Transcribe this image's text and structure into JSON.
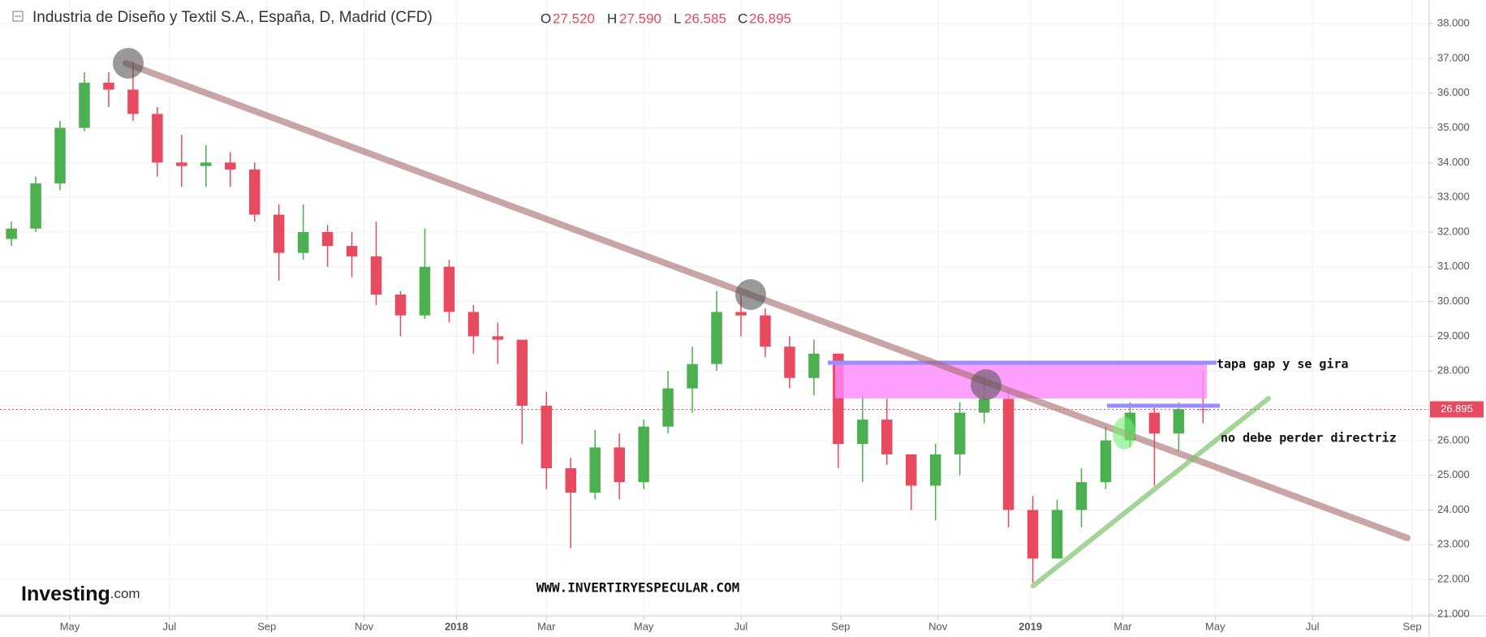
{
  "chart_data": {
    "type": "candlestick",
    "title": "Industria de Diseño y Textil S.A., España, D, Madrid (CFD)",
    "header": {
      "o_label": "O",
      "o": "27.520",
      "h_label": "H",
      "h": "27.590",
      "l_label": "L",
      "l": "26.585",
      "c_label": "C",
      "c": "26.895"
    },
    "open": [
      31.8,
      32.1,
      33.4,
      35.0,
      36.3,
      36.1,
      35.4,
      34.0,
      33.9,
      34.0,
      33.8,
      32.5,
      31.4,
      32.0,
      31.6,
      31.3,
      30.2,
      29.6,
      31.0,
      29.7,
      29.0,
      28.9,
      27.0,
      25.2,
      24.5,
      25.8,
      24.8,
      26.4,
      27.5,
      28.2,
      29.7,
      29.6,
      28.7,
      27.8,
      28.5,
      25.9,
      26.6,
      25.6,
      24.7,
      25.6,
      26.8,
      27.2,
      24.0,
      22.6,
      24.0,
      24.8,
      26.0,
      26.8,
      26.2,
      26.9
    ],
    "high": [
      32.3,
      33.6,
      35.2,
      36.6,
      36.6,
      36.9,
      35.6,
      34.8,
      34.5,
      34.3,
      34.0,
      32.8,
      32.8,
      32.2,
      32.0,
      32.3,
      30.3,
      32.1,
      31.2,
      29.9,
      29.4,
      28.9,
      27.4,
      25.5,
      26.3,
      26.2,
      26.6,
      28.0,
      28.7,
      30.3,
      30.2,
      29.8,
      29.0,
      28.9,
      28.5,
      27.3,
      27.2,
      25.6,
      25.9,
      27.1,
      27.9,
      27.4,
      24.4,
      24.3,
      25.2,
      26.4,
      27.1,
      27.0,
      27.1,
      28.0
    ],
    "low": [
      31.6,
      32.0,
      33.2,
      34.9,
      35.6,
      35.2,
      33.6,
      33.3,
      33.3,
      33.3,
      32.3,
      30.6,
      31.2,
      31.0,
      30.7,
      29.9,
      29.0,
      29.5,
      29.4,
      28.5,
      28.2,
      25.9,
      24.6,
      22.9,
      24.3,
      24.3,
      24.6,
      26.2,
      26.8,
      28.0,
      29.0,
      28.4,
      27.5,
      27.3,
      25.2,
      24.8,
      25.3,
      24.0,
      23.7,
      25.0,
      26.5,
      23.5,
      21.9,
      22.6,
      23.5,
      24.6,
      25.8,
      24.7,
      25.7,
      26.5
    ],
    "close": [
      32.1,
      33.4,
      35.0,
      36.3,
      36.1,
      35.4,
      34.0,
      33.9,
      34.0,
      33.8,
      32.5,
      31.4,
      32.0,
      31.6,
      31.3,
      30.2,
      29.6,
      31.0,
      29.7,
      29.0,
      28.9,
      27.0,
      25.2,
      24.5,
      25.8,
      24.8,
      26.4,
      27.5,
      28.2,
      29.7,
      29.6,
      28.7,
      27.8,
      28.5,
      25.9,
      26.6,
      25.6,
      24.7,
      25.6,
      26.8,
      27.2,
      24.0,
      22.6,
      24.0,
      24.8,
      26.0,
      26.8,
      26.2,
      26.9,
      26.895
    ],
    "up_color": "#4caf50",
    "down_color": "#e84a5f",
    "last_price": 26.895,
    "last_price_color": "#e84a5f",
    "xlim": [
      -0.47,
      58.3
    ],
    "xticks": [
      {
        "value": 2.4,
        "label": "May"
      },
      {
        "value": 6.5,
        "label": "Jul"
      },
      {
        "value": 10.5,
        "label": "Sep"
      },
      {
        "value": 14.5,
        "label": "Nov"
      },
      {
        "value": 18.3,
        "label": "2018"
      },
      {
        "value": 22.0,
        "label": "Mar"
      },
      {
        "value": 26.0,
        "label": "May"
      },
      {
        "value": 30.0,
        "label": "Jul"
      },
      {
        "value": 34.1,
        "label": "Sep"
      },
      {
        "value": 38.1,
        "label": "Nov"
      },
      {
        "value": 41.9,
        "label": "2019"
      },
      {
        "value": 45.7,
        "label": "Mar"
      },
      {
        "value": 49.5,
        "label": "May"
      },
      {
        "value": 53.5,
        "label": "Jul"
      },
      {
        "value": 57.6,
        "label": "Sep"
      }
    ],
    "ylim": [
      20.95,
      38.68
    ],
    "yticks": [
      {
        "value": 21,
        "label": "21.000"
      },
      {
        "value": 22,
        "label": "22.000"
      },
      {
        "value": 23,
        "label": "23.000"
      },
      {
        "value": 24,
        "label": "24.000"
      },
      {
        "value": 25,
        "label": "25.000"
      },
      {
        "value": 26,
        "label": "26.000"
      },
      {
        "value": 27,
        "label": "27.000"
      },
      {
        "value": 28,
        "label": "28.000"
      },
      {
        "value": 29,
        "label": "29.000"
      },
      {
        "value": 30,
        "label": "30.000"
      },
      {
        "value": 31,
        "label": "31.000"
      },
      {
        "value": 32,
        "label": "32.000"
      },
      {
        "value": 33,
        "label": "33.000"
      },
      {
        "value": 34,
        "label": "34.000"
      },
      {
        "value": 35,
        "label": "35.000"
      },
      {
        "value": 36,
        "label": "36.000"
      },
      {
        "value": 37,
        "label": "37.000"
      },
      {
        "value": 38,
        "label": "38.000"
      }
    ],
    "grid": true,
    "annotations": [
      "tapa gap y se gira",
      "no debe perder directriz"
    ],
    "watermark": "WWW.INVERTIRYESPECULAR.COM",
    "logo": {
      "name": "Investing",
      "suffix": ".com"
    }
  }
}
